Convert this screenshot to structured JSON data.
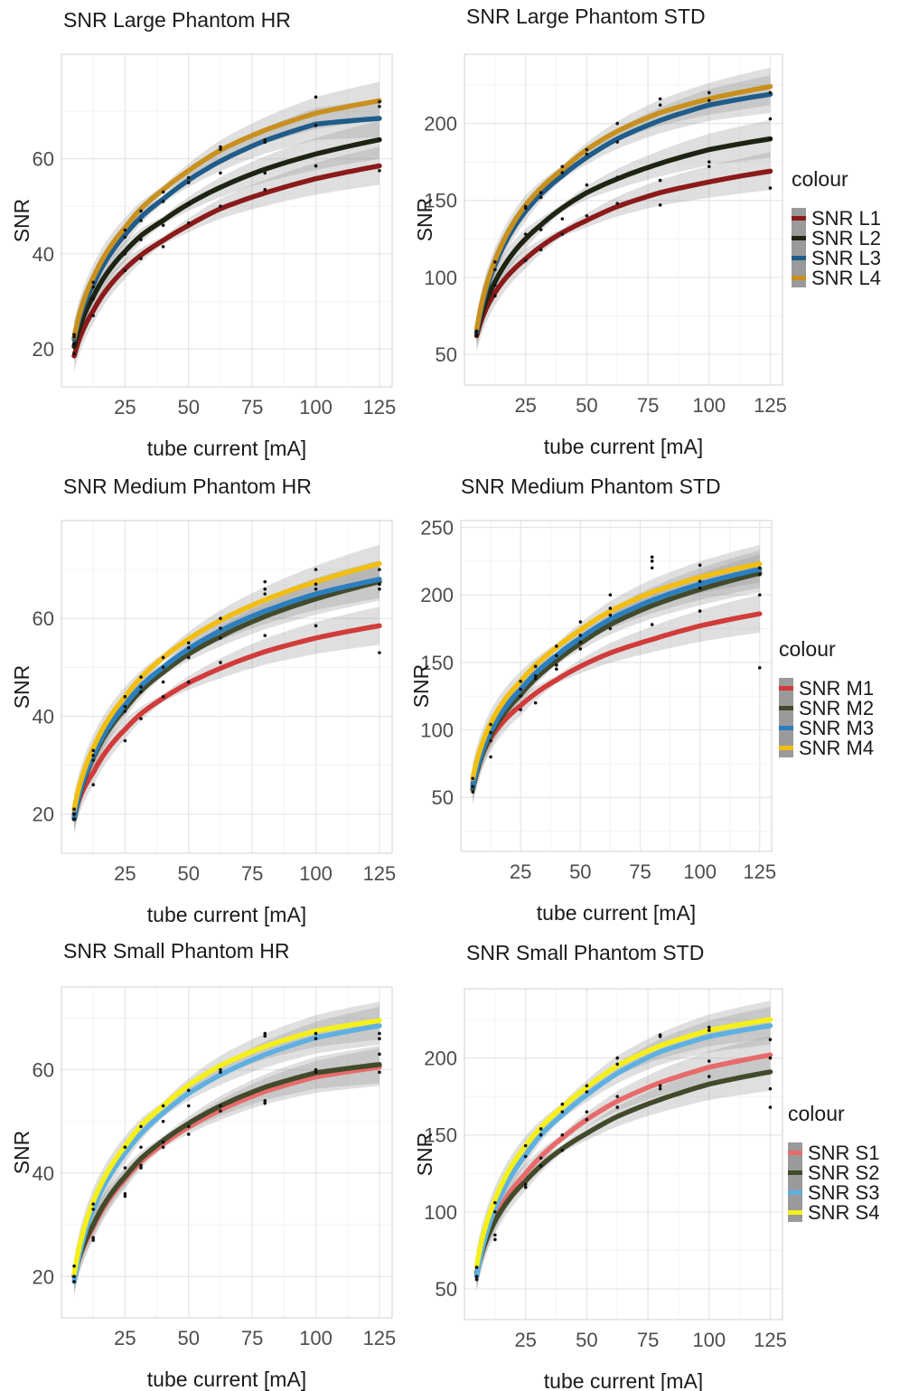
{
  "chart_data": [
    {
      "type": "line",
      "title": "SNR Large Phantom HR",
      "xlabel": "tube current [mA]",
      "ylabel": "SNR",
      "xlim": [
        0,
        130
      ],
      "ylim": [
        12,
        82
      ],
      "xticks": [
        25,
        50,
        75,
        100,
        125
      ],
      "yticks": [
        20,
        40,
        60
      ],
      "grid": true,
      "legend": null,
      "x": [
        5,
        12.5,
        25,
        31.25,
        40,
        50,
        62.5,
        80,
        100,
        125
      ],
      "series": [
        {
          "color": "#8b1a1a",
          "values": [
            18.5,
            28.0,
            36.8,
            39.7,
            42.8,
            46.0,
            49.5,
            52.8,
            55.8,
            58.5
          ],
          "points": [
            19,
            27,
            36.5,
            39,
            41.5,
            46.5,
            50,
            53.5,
            58.5,
            57.5
          ]
        },
        {
          "color": "#1e2412",
          "values": [
            20.5,
            31.0,
            40.5,
            43.8,
            47.0,
            50.5,
            54.0,
            57.8,
            61.0,
            64.0
          ],
          "points": [
            21,
            30.5,
            40,
            43,
            46,
            50.5,
            57,
            57,
            58.5,
            64
          ]
        },
        {
          "color": "#1f5c8a",
          "values": [
            22.0,
            33.5,
            44.0,
            47.7,
            51.5,
            55.5,
            59.5,
            63.8,
            67.3,
            68.5
          ],
          "points": [
            22.5,
            33,
            43.5,
            47,
            51,
            55,
            62,
            63.5,
            67,
            71
          ]
        },
        {
          "color": "#c8901e",
          "values": [
            22.5,
            35.0,
            45.5,
            49.5,
            53.5,
            57.5,
            61.8,
            66.0,
            69.6,
            72.2
          ],
          "points": [
            23,
            34,
            45,
            49,
            53,
            56,
            62.5,
            64,
            73,
            72
          ]
        }
      ]
    },
    {
      "type": "line",
      "title": "SNR Large Phantom STD",
      "xlabel": "tube current [mA]",
      "ylabel": "SNR",
      "xlim": [
        0,
        130
      ],
      "ylim": [
        30,
        245
      ],
      "xticks": [
        25,
        50,
        75,
        100,
        125
      ],
      "yticks": [
        50,
        100,
        150,
        200
      ],
      "grid": true,
      "legend": {
        "title": "colour",
        "position": "right",
        "entries": [
          "SNR L1",
          "SNR L2",
          "SNR L3",
          "SNR L4"
        ]
      },
      "x": [
        5,
        12.5,
        25,
        31.25,
        40,
        50,
        62.5,
        80,
        100,
        125
      ],
      "series": [
        {
          "color": "#8b1a1a",
          "values": [
            62,
            90,
            112,
            120,
            129,
            137,
            146,
            155,
            162,
            169
          ],
          "points": [
            63,
            88,
            111,
            118,
            128,
            140,
            148,
            147,
            175,
            158
          ]
        },
        {
          "color": "#1e2412",
          "values": [
            64,
            97,
            125,
            134,
            145,
            155,
            164,
            174,
            183,
            190
          ],
          "points": [
            65,
            95,
            128,
            131,
            138,
            160,
            165,
            163,
            172,
            190
          ]
        },
        {
          "color": "#1f5c8a",
          "values": [
            64,
            108,
            143,
            154,
            166,
            178,
            190,
            202,
            212,
            219
          ],
          "points": [
            62,
            105,
            145,
            152,
            168,
            180,
            188,
            212,
            215,
            220
          ]
        },
        {
          "color": "#c8901e",
          "values": [
            66,
            111,
            147,
            158,
            170,
            183,
            195,
            207,
            216,
            224
          ],
          "points": [
            65,
            110,
            146,
            155,
            172,
            183,
            200,
            216,
            220,
            203
          ]
        }
      ]
    },
    {
      "type": "line",
      "title": "SNR Medium Phantom HR",
      "xlabel": "tube current [mA]",
      "ylabel": "SNR",
      "xlim": [
        0,
        130
      ],
      "ylim": [
        12,
        80
      ],
      "xticks": [
        25,
        50,
        75,
        100,
        125
      ],
      "yticks": [
        20,
        40,
        60
      ],
      "grid": true,
      "legend": null,
      "x": [
        5,
        12.5,
        25,
        31.25,
        40,
        50,
        62.5,
        80,
        100,
        125
      ],
      "series": [
        {
          "color": "#d13b3b",
          "values": [
            20,
            28.5,
            37.3,
            40.5,
            43.7,
            46.8,
            49.8,
            53.2,
            56.0,
            58.5
          ],
          "points": [
            20,
            26,
            35,
            39.5,
            44,
            47,
            51,
            56.5,
            58.5,
            53
          ]
        },
        {
          "color": "#414a2a",
          "values": [
            19,
            31.5,
            41.5,
            45.2,
            49.0,
            52.7,
            56.3,
            60.4,
            64.0,
            67.5
          ],
          "points": [
            19,
            31,
            41,
            45,
            47,
            52,
            56,
            65,
            66,
            66
          ]
        },
        {
          "color": "#2b7fbf",
          "values": [
            19.5,
            32.0,
            42.3,
            46.2,
            50.0,
            53.8,
            57.5,
            61.5,
            65.0,
            68.0
          ],
          "points": [
            20,
            32,
            42,
            46,
            50,
            54,
            58,
            66,
            67,
            67
          ]
        },
        {
          "color": "#f2be10",
          "values": [
            21,
            33.5,
            44.0,
            47.9,
            52.0,
            55.8,
            59.6,
            63.8,
            67.5,
            71.2
          ],
          "points": [
            21,
            33,
            44,
            48,
            52,
            55,
            60,
            67.5,
            70,
            70
          ]
        }
      ]
    },
    {
      "type": "line",
      "title": "SNR Medium Phantom STD",
      "xlabel": "tube current [mA]",
      "ylabel": "SNR",
      "xlim": [
        0,
        130
      ],
      "ylim": [
        10,
        255
      ],
      "xticks": [
        25,
        50,
        75,
        100,
        125
      ],
      "yticks": [
        50,
        100,
        150,
        200,
        250
      ],
      "grid": true,
      "legend": {
        "title": "colour",
        "position": "right",
        "entries": [
          "SNR M1",
          "SNR M2",
          "SNR M3",
          "SNR M4"
        ]
      },
      "x": [
        5,
        12.5,
        25,
        31.25,
        40,
        50,
        62.5,
        80,
        100,
        125
      ],
      "series": [
        {
          "color": "#d13b3b",
          "values": [
            60,
            94,
            118,
            127,
            137,
            147,
            157,
            167,
            177,
            186
          ],
          "points": [
            58,
            80,
            115,
            120,
            145,
            160,
            175,
            178,
            188,
            146
          ]
        },
        {
          "color": "#414a2a",
          "values": [
            56,
            96,
            126,
            138,
            151,
            164,
            178,
            192,
            204,
            216
          ],
          "points": [
            54,
            92,
            125,
            138,
            148,
            165,
            185,
            220,
            205,
            215
          ]
        },
        {
          "color": "#2b7fbf",
          "values": [
            58,
            99,
            130,
            142,
            155,
            168,
            182,
            196,
            208,
            219
          ],
          "points": [
            58,
            98,
            130,
            140,
            155,
            170,
            190,
            225,
            210,
            220
          ]
        },
        {
          "color": "#f2be10",
          "values": [
            64,
            105,
            136,
            148,
            161,
            174,
            188,
            202,
            213,
            223
          ],
          "points": [
            64,
            104,
            136,
            147,
            162,
            180,
            200,
            228,
            222,
            200
          ]
        }
      ]
    },
    {
      "type": "line",
      "title": "SNR Small Phantom HR",
      "xlabel": "tube current [mA]",
      "ylabel": "SNR",
      "xlim": [
        0,
        130
      ],
      "ylim": [
        12,
        76
      ],
      "xticks": [
        25,
        50,
        75,
        100,
        125
      ],
      "yticks": [
        20,
        40,
        60
      ],
      "grid": true,
      "legend": null,
      "x": [
        5,
        12.5,
        25,
        31.25,
        40,
        50,
        62.5,
        80,
        100,
        125
      ],
      "series": [
        {
          "color": "#e86b6b",
          "values": [
            20,
            29.5,
            38.8,
            42.2,
            45.6,
            48.9,
            52.2,
            55.8,
            58.6,
            60.5
          ],
          "points": [
            20,
            27,
            36,
            41,
            45,
            47.5,
            52,
            53.5,
            59.5,
            59.5
          ]
        },
        {
          "color": "#414a2a",
          "values": [
            20,
            30.0,
            39.3,
            42.8,
            46.3,
            49.6,
            53.0,
            56.6,
            59.4,
            61.0
          ],
          "points": [
            20,
            27.5,
            35.5,
            41.5,
            46,
            49,
            53,
            54,
            60,
            63
          ]
        },
        {
          "color": "#5fb0e0",
          "values": [
            19,
            33.0,
            43.8,
            47.6,
            51.6,
            55.4,
            59.0,
            62.9,
            66.2,
            68.5
          ],
          "points": [
            19,
            33,
            41,
            45,
            50,
            53,
            60,
            67,
            66,
            67
          ]
        },
        {
          "color": "#f5f018",
          "values": [
            20.5,
            34.5,
            45.2,
            49.2,
            53.0,
            57.0,
            60.8,
            64.5,
            67.5,
            69.5
          ],
          "points": [
            22,
            34,
            45,
            49,
            53,
            56,
            59.5,
            66.5,
            67,
            66
          ]
        }
      ]
    },
    {
      "type": "line",
      "title": "SNR Small Phantom STD",
      "xlabel": "tube current [mA]",
      "ylabel": "SNR",
      "xlim": [
        0,
        130
      ],
      "ylim": [
        30,
        245
      ],
      "xticks": [
        25,
        50,
        75,
        100,
        125
      ],
      "yticks": [
        50,
        100,
        150,
        200
      ],
      "grid": true,
      "legend": {
        "title": "colour",
        "position": "right",
        "entries": [
          "SNR S1",
          "SNR S2",
          "SNR S3",
          "SNR S4"
        ]
      },
      "x": [
        5,
        12.5,
        25,
        31.25,
        40,
        50,
        62.5,
        80,
        100,
        125
      ],
      "series": [
        {
          "color": "#e86b6b",
          "values": [
            60,
            96,
            125,
            136,
            148,
            160,
            172,
            184,
            194,
            202
          ],
          "points": [
            58,
            85,
            118,
            135,
            150,
            165,
            175,
            180,
            198,
            180
          ]
        },
        {
          "color": "#414a2a",
          "values": [
            60,
            94,
            120,
            130,
            141,
            151,
            162,
            173,
            183,
            191
          ],
          "points": [
            58,
            82,
            116,
            130,
            140,
            160,
            168,
            182,
            188,
            168
          ]
        },
        {
          "color": "#5fb0e0",
          "values": [
            58,
            102,
            137,
            150,
            163,
            176,
            190,
            204,
            214,
            221
          ],
          "points": [
            56,
            100,
            136,
            150,
            165,
            178,
            196,
            214,
            218,
            200
          ]
        },
        {
          "color": "#f5f018",
          "values": [
            65,
            108,
            143,
            155,
            168,
            181,
            195,
            208,
            218,
            225
          ],
          "points": [
            64,
            106,
            143,
            154,
            170,
            182,
            200,
            215,
            220,
            212
          ]
        }
      ]
    }
  ]
}
